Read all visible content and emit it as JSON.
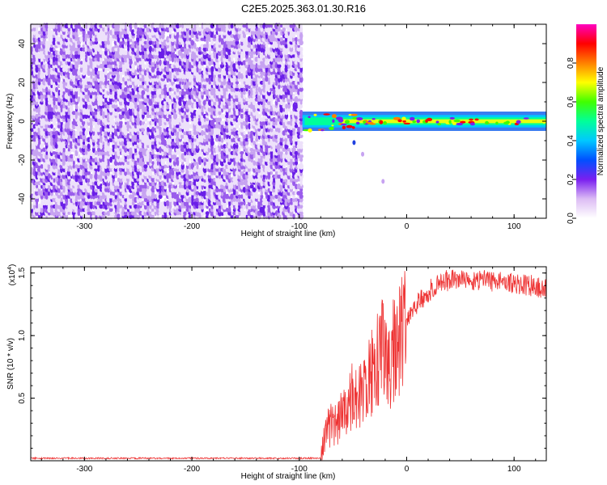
{
  "title": "C2E5.2025.363.01.30.R16",
  "chart_data": [
    {
      "type": "heatmap",
      "xlabel": "Height of straight line (km)",
      "ylabel": "Frequency (Hz)",
      "xlim": [
        -350,
        130
      ],
      "ylim": [
        -50,
        50
      ],
      "xticks": [
        -300,
        -200,
        -100,
        0,
        100
      ],
      "xtick_labels": [
        "-300",
        "-200",
        "-100",
        "0",
        "100"
      ],
      "yticks": [
        -40,
        -20,
        0,
        20,
        40
      ],
      "ytick_labels": [
        "-40",
        "-20",
        "0",
        "20",
        "40"
      ],
      "noise_region_x": [
        -350,
        -97
      ],
      "signal_line_frequency": 0,
      "colorbar": {
        "label": "Normalized spectral amplitude",
        "range": [
          0,
          1
        ],
        "ticks": [
          0.0,
          0.2,
          0.4,
          0.6,
          0.8
        ],
        "tick_labels": [
          "0.0",
          "0.2",
          "0.4",
          "0.6",
          "0.8"
        ],
        "colors": [
          "#ffffff",
          "#dcbcf4",
          "#7a1ff0",
          "#0050ff",
          "#00c8ff",
          "#00ff9a",
          "#40ff00",
          "#ffff00",
          "#ff8000",
          "#ff0000",
          "#ff00c0"
        ]
      }
    },
    {
      "type": "line",
      "xlabel": "Height of straight line (km)",
      "ylabel": "SNR (10 * v/v)",
      "scale_label": "(x10",
      "scale_exp": "4",
      "scale_close": ")",
      "xlim": [
        -350,
        130
      ],
      "ylim": [
        0,
        1.55
      ],
      "xticks": [
        -300,
        -200,
        -100,
        0,
        100
      ],
      "xtick_labels": [
        "-300",
        "-200",
        "-100",
        "0",
        "100"
      ],
      "yticks": [
        0.5,
        1.0,
        1.5
      ],
      "ytick_labels": [
        "0.5",
        "1.0",
        "1.5"
      ],
      "color": "#ee3333",
      "series": [
        {
          "name": "SNR",
          "x": [
            -350,
            -300,
            -250,
            -200,
            -150,
            -100,
            -80,
            -75,
            -70,
            -65,
            -60,
            -55,
            -50,
            -45,
            -40,
            -35,
            -30,
            -25,
            -20,
            -15,
            -10,
            -5,
            0,
            10,
            20,
            30,
            40,
            50,
            60,
            70,
            80,
            90,
            100,
            110,
            120,
            130
          ],
          "y": [
            0.02,
            0.02,
            0.02,
            0.02,
            0.02,
            0.02,
            0.02,
            0.25,
            0.3,
            0.3,
            0.38,
            0.45,
            0.55,
            0.5,
            0.55,
            0.65,
            0.75,
            0.85,
            0.9,
            0.8,
            0.95,
            1.0,
            1.15,
            1.25,
            1.35,
            1.42,
            1.45,
            1.45,
            1.45,
            1.44,
            1.44,
            1.43,
            1.42,
            1.41,
            1.4,
            1.38
          ]
        }
      ]
    }
  ]
}
